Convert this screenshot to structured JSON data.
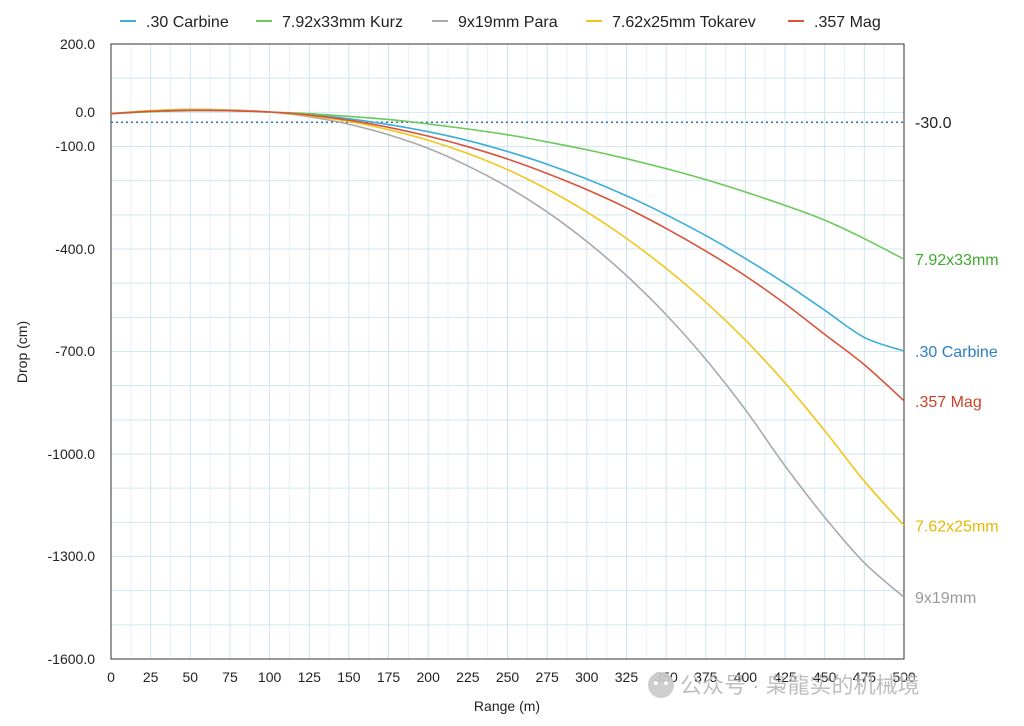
{
  "chart_data": {
    "type": "line",
    "xlabel": "Range (m)",
    "ylabel": "Drop (cm)",
    "xlim": [
      0,
      500
    ],
    "ylim": [
      -1600,
      200
    ],
    "x_ticks": [
      0,
      25,
      50,
      75,
      100,
      125,
      150,
      175,
      200,
      225,
      250,
      275,
      300,
      325,
      350,
      375,
      400,
      425,
      450,
      475,
      500
    ],
    "x_tick_labels": [
      "0",
      "25",
      "50",
      "75",
      "100",
      "125",
      "150",
      "175",
      "200",
      "225",
      "250",
      "275",
      "300",
      "325",
      "350",
      "375",
      "400",
      "425",
      "450",
      "475",
      "500"
    ],
    "y_ticks": [
      200,
      0,
      -100,
      -400,
      -700,
      -1000,
      -1300,
      -1600
    ],
    "y_tick_labels": [
      "200.0",
      "0.0",
      "-100.0",
      "-400.0",
      "-700.0",
      "-1000.0",
      "-1300.0",
      "-1600.0"
    ],
    "grid": true,
    "legend_position": "top",
    "reference_line": {
      "y": -30,
      "label": "-30.0",
      "color": "#2f6fb3",
      "style": "dotted"
    },
    "x": [
      0,
      25,
      50,
      75,
      100,
      125,
      150,
      175,
      200,
      225,
      250,
      275,
      300,
      325,
      350,
      375,
      400,
      425,
      450,
      475,
      500
    ],
    "series": [
      {
        "name": ".30 Carbine",
        "end_label": ".30 Carbine",
        "color": "#3aaed8",
        "label_color": "#2a7fc7",
        "values": [
          -5,
          2,
          5,
          4,
          0,
          -8,
          -20,
          -37,
          -58,
          -84,
          -116,
          -153,
          -196,
          -245,
          -300,
          -361,
          -428,
          -501,
          -580,
          -660,
          -700
        ]
      },
      {
        "name": "7.92x33mm Kurz",
        "end_label": "7.92x33mm",
        "color": "#6cc95a",
        "label_color": "#3faa2f",
        "values": [
          -5,
          1,
          4,
          4,
          0,
          -5,
          -13,
          -22,
          -35,
          -50,
          -67,
          -88,
          -111,
          -137,
          -166,
          -198,
          -234,
          -273,
          -316,
          -370,
          -430
        ]
      },
      {
        "name": "9x19mm Para",
        "end_label": "9x19mm",
        "color": "#a9a9a9",
        "label_color": "#9a9a9a",
        "values": [
          -5,
          4,
          8,
          6,
          0,
          -14,
          -36,
          -67,
          -107,
          -158,
          -219,
          -292,
          -378,
          -478,
          -593,
          -724,
          -871,
          -1035,
          -1186,
          -1320,
          -1420
        ]
      },
      {
        "name": "7.62x25mm Tokarev",
        "end_label": "7.62x25mm",
        "color": "#f2c61c",
        "label_color": "#e8b800",
        "values": [
          -5,
          4,
          7,
          5,
          0,
          -11,
          -28,
          -52,
          -83,
          -122,
          -169,
          -226,
          -292,
          -369,
          -457,
          -556,
          -668,
          -793,
          -932,
          -1080,
          -1210
        ]
      },
      {
        "name": ".357 Mag",
        "end_label": ".357 Mag",
        "color": "#d9533a",
        "label_color": "#cc4329",
        "values": [
          -5,
          2,
          5,
          4,
          0,
          -9,
          -24,
          -45,
          -71,
          -102,
          -138,
          -180,
          -227,
          -280,
          -340,
          -406,
          -479,
          -561,
          -651,
          -740,
          -845
        ]
      }
    ]
  },
  "watermark": {
    "text": "公众号 · 枭龍实的机械境",
    "icon": "wechat-icon"
  }
}
